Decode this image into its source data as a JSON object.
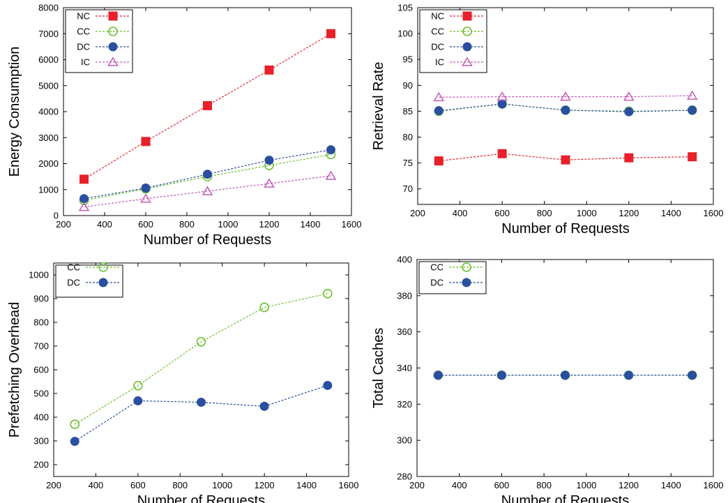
{
  "colors": {
    "NC": "#e8202a",
    "CC": "#6dbf2e",
    "DC": "#2b4fa0",
    "IC": "#c55ab8"
  },
  "markers": {
    "NC": "square-filled",
    "CC": "circle-open",
    "DC": "circle-filled",
    "IC": "triangle-open"
  },
  "chart_data": [
    {
      "type": "line",
      "xlabel": "Number of Requests",
      "ylabel": "Energy Consumption",
      "xlim": [
        200,
        1600
      ],
      "ylim": [
        0,
        8000
      ],
      "xticks": [
        200,
        400,
        600,
        800,
        1000,
        1200,
        1400,
        1600
      ],
      "yticks": [
        0,
        1000,
        2000,
        3000,
        4000,
        5000,
        6000,
        7000,
        8000
      ],
      "legend_position": "top-left",
      "x": [
        300,
        600,
        900,
        1200,
        1500
      ],
      "series": [
        {
          "name": "NC",
          "values": [
            1400,
            2850,
            4230,
            5600,
            7000
          ]
        },
        {
          "name": "CC",
          "values": [
            580,
            1030,
            1500,
            1930,
            2350
          ]
        },
        {
          "name": "DC",
          "values": [
            650,
            1060,
            1590,
            2130,
            2530
          ]
        },
        {
          "name": "IC",
          "values": [
            330,
            650,
            940,
            1230,
            1530
          ]
        }
      ]
    },
    {
      "type": "line",
      "xlabel": "Number of Requests",
      "ylabel": "Retrieval Rate",
      "xlim": [
        200,
        1600
      ],
      "ylim": [
        67,
        105
      ],
      "xticks": [
        200,
        400,
        600,
        800,
        1000,
        1200,
        1400,
        1600
      ],
      "yticks": [
        70,
        75,
        80,
        85,
        90,
        95,
        100,
        105
      ],
      "legend_position": "top-left",
      "x": [
        300,
        600,
        900,
        1200,
        1500
      ],
      "series": [
        {
          "name": "NC",
          "values": [
            75.4,
            76.8,
            75.6,
            76.0,
            76.2
          ]
        },
        {
          "name": "CC",
          "values": [
            85.0,
            86.4,
            85.2,
            85.0,
            85.2
          ]
        },
        {
          "name": "DC",
          "values": [
            85.1,
            86.4,
            85.2,
            84.9,
            85.2
          ]
        },
        {
          "name": "IC",
          "values": [
            87.7,
            87.8,
            87.8,
            87.8,
            88.0
          ]
        }
      ]
    },
    {
      "type": "line",
      "xlabel": "Number of Requests",
      "ylabel": "Prefetching Overhead",
      "xlim": [
        200,
        1600
      ],
      "ylim": [
        150,
        1050
      ],
      "xticks": [
        200,
        400,
        600,
        800,
        1000,
        1200,
        1400,
        1600
      ],
      "yticks": [
        200,
        300,
        400,
        500,
        600,
        700,
        800,
        900,
        1000
      ],
      "legend_position": "top-left",
      "x": [
        300,
        600,
        900,
        1200,
        1500
      ],
      "series": [
        {
          "name": "CC",
          "values": [
            370,
            533,
            718,
            863,
            921
          ]
        },
        {
          "name": "DC",
          "values": [
            298,
            469,
            463,
            446,
            534
          ]
        }
      ]
    },
    {
      "type": "line",
      "xlabel": "Number of Requests",
      "ylabel": "Total Caches",
      "xlim": [
        200,
        1600
      ],
      "ylim": [
        280,
        400
      ],
      "xticks": [
        200,
        400,
        600,
        800,
        1000,
        1200,
        1400,
        1600
      ],
      "yticks": [
        280,
        300,
        320,
        340,
        360,
        380,
        400
      ],
      "legend_position": "top-left",
      "x": [
        300,
        600,
        900,
        1200,
        1500
      ],
      "series": [
        {
          "name": "CC",
          "values": [
            336,
            336,
            336,
            336,
            336
          ]
        },
        {
          "name": "DC",
          "values": [
            336,
            336,
            336,
            336,
            336
          ]
        }
      ]
    }
  ]
}
